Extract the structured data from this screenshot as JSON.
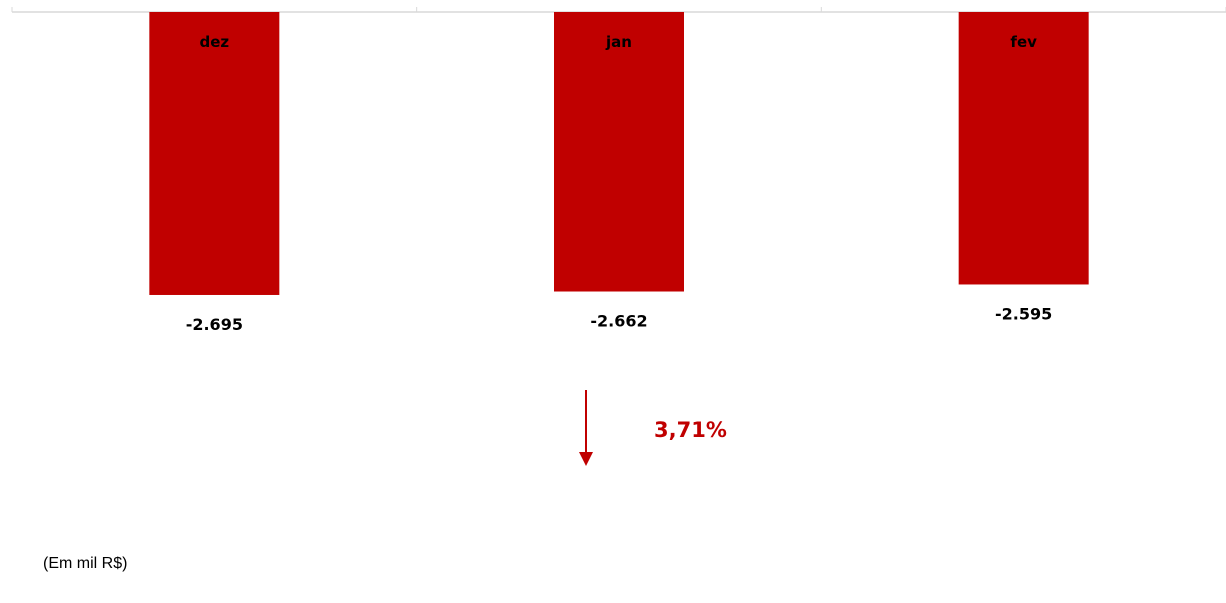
{
  "chart_data": {
    "type": "bar",
    "categories": [
      "dez",
      "jan",
      "fev"
    ],
    "values": [
      -2695,
      -2662,
      -2595
    ],
    "value_labels": [
      "-2.695",
      "-2.662",
      "-2.595"
    ],
    "title": "",
    "xlabel": "",
    "ylabel": "",
    "ylim": [
      -2800,
      0
    ],
    "grid": false,
    "bar_color": "#c00000",
    "annotation": {
      "text": "3,71%",
      "direction": "down",
      "color": "#c00000"
    },
    "unit_note": "(Em mil R$)"
  }
}
